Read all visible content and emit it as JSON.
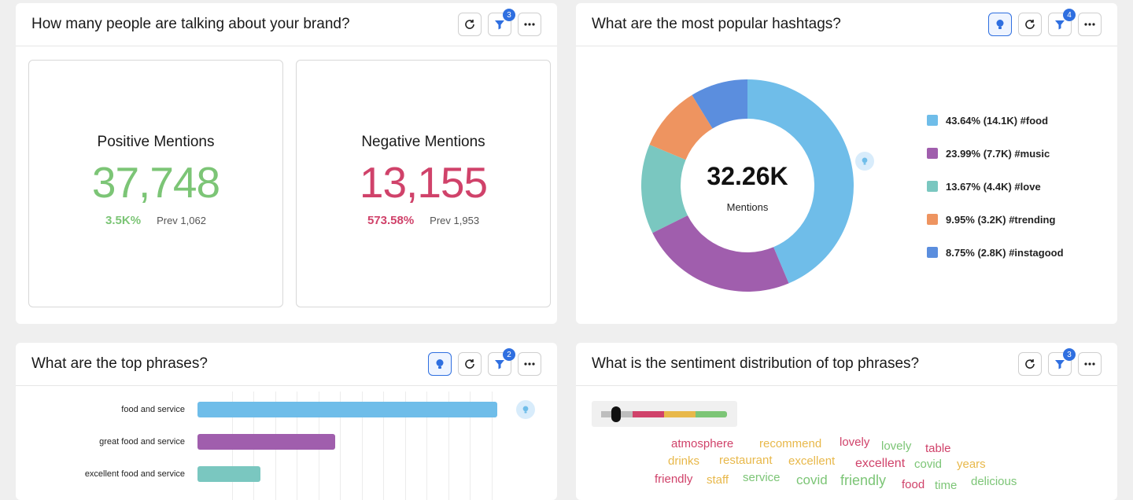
{
  "brand_card": {
    "title": "How many people are talking about your brand?",
    "filter_count": "3",
    "positive": {
      "label": "Positive Mentions",
      "value": "37,748",
      "change": "3.5K%",
      "prev": "Prev 1,062",
      "color": "#7cc576"
    },
    "negative": {
      "label": "Negative Mentions",
      "value": "13,155",
      "change": "573.58%",
      "prev": "Prev 1,953",
      "color": "#d0426a"
    }
  },
  "hashtags_card": {
    "title": "What are the most popular hashtags?",
    "filter_count": "4",
    "center_value": "32.26K",
    "center_label": "Mentions",
    "legend": [
      {
        "text": "43.64% (14.1K) #food",
        "color": "#6fbde9"
      },
      {
        "text": "23.99% (7.7K) #music",
        "color": "#a05ead"
      },
      {
        "text": "13.67% (4.4K) #love",
        "color": "#7ac7c0"
      },
      {
        "text": "9.95% (3.2K) #trending",
        "color": "#ee9460"
      },
      {
        "text": "8.75% (2.8K) #instagood",
        "color": "#5b8ede"
      }
    ]
  },
  "chart_data": {
    "type": "pie",
    "categories": [
      "#food",
      "#music",
      "#love",
      "#trending",
      "#instagood"
    ],
    "values": [
      43.64,
      23.99,
      13.67,
      9.95,
      8.75
    ],
    "colors": [
      "#6fbde9",
      "#a05ead",
      "#7ac7c0",
      "#ee9460",
      "#5b8ede"
    ],
    "donut": true
  },
  "phrases_card": {
    "title": "What are the top phrases?",
    "filter_count": "2",
    "bars": [
      {
        "label": "food and service",
        "value": 1.0,
        "color": "#6fbde9"
      },
      {
        "label": "great food and service",
        "value": 0.46,
        "color": "#a05ead"
      },
      {
        "label": "excellent food and service",
        "value": 0.21,
        "color": "#7ac7c0"
      }
    ]
  },
  "sentiment_card": {
    "title": "What is the sentiment distribution of top phrases?",
    "filter_count": "3",
    "slider_colors": [
      "#d0426a",
      "#e8b84a",
      "#7cc576"
    ],
    "words": [
      {
        "text": "atmosphere",
        "color": "#d0426a"
      },
      {
        "text": "recommend",
        "color": "#e8b84a"
      },
      {
        "text": "lovely",
        "color": "#d0426a"
      },
      {
        "text": "lovely",
        "color": "#7cc576"
      },
      {
        "text": "table",
        "color": "#d0426a"
      },
      {
        "text": "drinks",
        "color": "#e8b84a"
      },
      {
        "text": "restaurant",
        "color": "#e8b84a"
      },
      {
        "text": "excellent",
        "color": "#e8b84a"
      },
      {
        "text": "excellent",
        "color": "#d0426a"
      },
      {
        "text": "covid",
        "color": "#7cc576"
      },
      {
        "text": "years",
        "color": "#e8b84a"
      },
      {
        "text": "friendly",
        "color": "#d0426a"
      },
      {
        "text": "staff",
        "color": "#e8b84a"
      },
      {
        "text": "service",
        "color": "#7cc576"
      },
      {
        "text": "covid",
        "color": "#7cc576"
      },
      {
        "text": "friendly",
        "color": "#7cc576"
      },
      {
        "text": "food",
        "color": "#d0426a"
      },
      {
        "text": "time",
        "color": "#7cc576"
      },
      {
        "text": "delicious",
        "color": "#7cc576"
      }
    ]
  }
}
